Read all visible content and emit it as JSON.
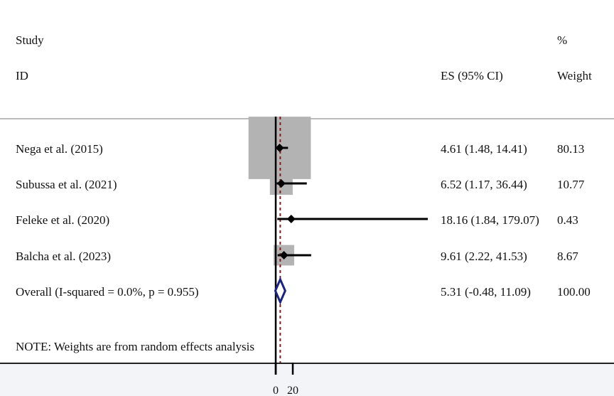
{
  "header": {
    "study_label": "Study",
    "id_label": "ID",
    "es_label": "ES (95% CI)",
    "pct_label": "%",
    "weight_label": "Weight"
  },
  "note": "NOTE: Weights are from random effects analysis",
  "colors": {
    "weight_box": "#b3b3b3",
    "ci_line": "#000000",
    "overall_diamond": "#1a237e",
    "overall_line": "#8b1a1a"
  },
  "chart_data": {
    "type": "forest",
    "x_axis_ticks": [
      "0",
      "20"
    ],
    "tick_values": [
      0,
      20
    ],
    "studies": [
      {
        "label": "Nega et al.  (2015)",
        "es": 4.61,
        "lo": 1.48,
        "hi": 14.41,
        "es_ci": "4.61 (1.48, 14.41)",
        "weight": 80.13,
        "weight_text": "80.13"
      },
      {
        "label": "Subussa et al.  (2021)",
        "es": 6.52,
        "lo": 1.17,
        "hi": 36.44,
        "es_ci": "6.52 (1.17, 36.44)",
        "weight": 10.77,
        "weight_text": "10.77"
      },
      {
        "label": "Feleke et al. (2020)",
        "es": 18.16,
        "lo": 1.84,
        "hi": 179.07,
        "es_ci": "18.16 (1.84, 179.07)",
        "weight": 0.43,
        "weight_text": "0.43"
      },
      {
        "label": "Balcha et al. (2023)",
        "es": 9.61,
        "lo": 2.22,
        "hi": 41.53,
        "es_ci": "9.61 (2.22, 41.53)",
        "weight": 8.67,
        "weight_text": "8.67"
      }
    ],
    "overall": {
      "label": "Overall  (I-squared = 0.0%, p = 0.955)",
      "es": 5.31,
      "lo": -0.48,
      "hi": 11.09,
      "es_ci": "5.31 (-0.48, 11.09)",
      "weight_text": "100.00"
    }
  }
}
